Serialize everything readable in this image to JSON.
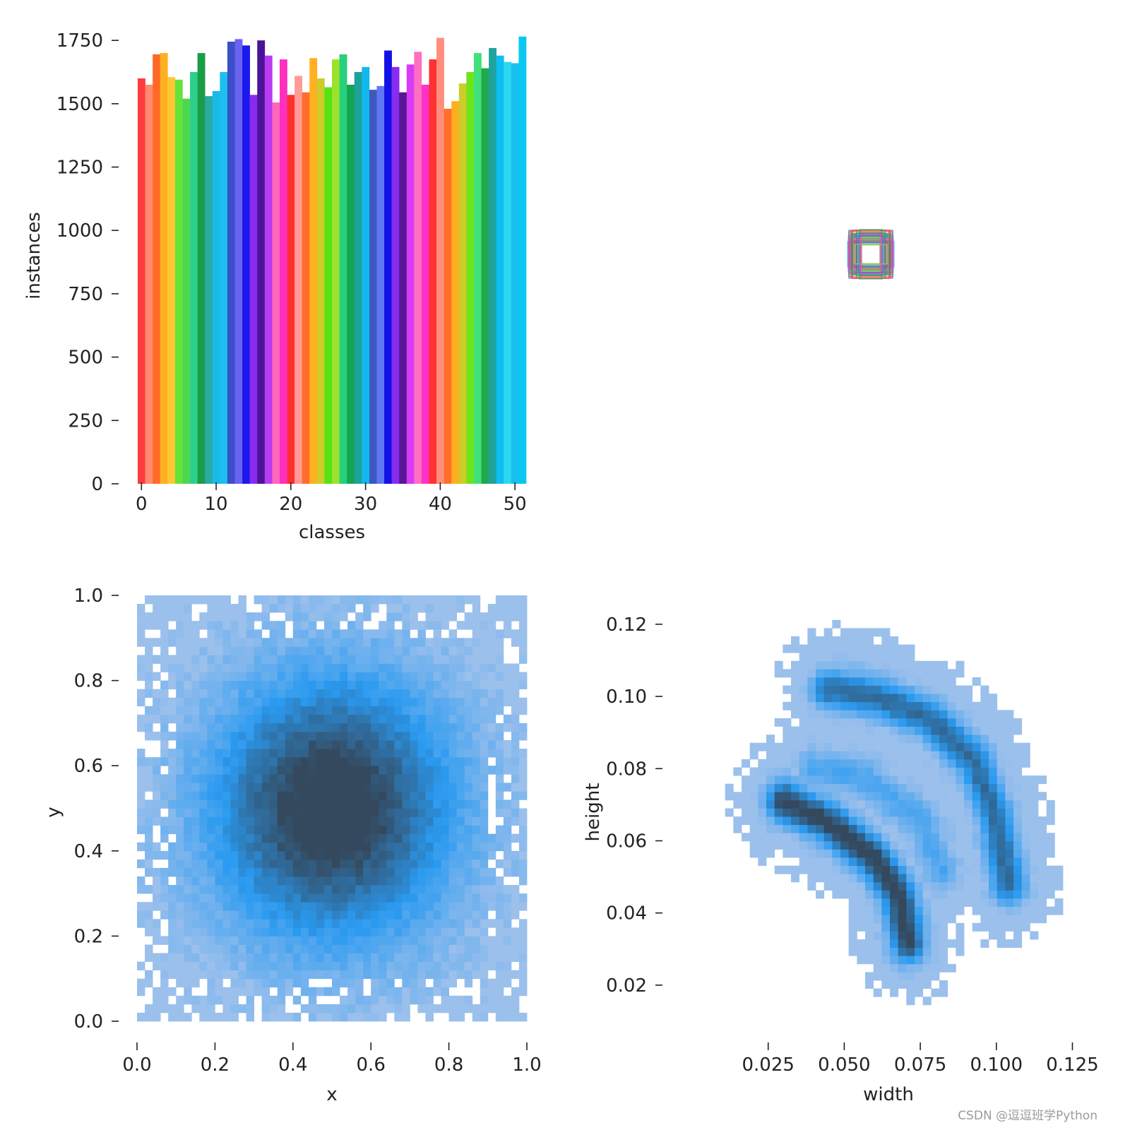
{
  "watermark": "CSDN @逗逗班学Python",
  "colors": {
    "hist_light": "#a8c4ec",
    "hist_mid": "#2a9af0",
    "hist_dark": "#34495e",
    "text": "#222222"
  },
  "chart_data": [
    {
      "type": "bar",
      "position": "top-left",
      "xlabel": "classes",
      "ylabel": "instances",
      "xticks": [
        0,
        10,
        20,
        30,
        40,
        50
      ],
      "yticks": [
        0,
        250,
        500,
        750,
        1000,
        1250,
        1500,
        1750
      ],
      "xlim": [
        -0.5,
        51.5
      ],
      "ylim": [
        0,
        1770
      ],
      "categories": [
        0,
        1,
        2,
        3,
        4,
        5,
        6,
        7,
        8,
        9,
        10,
        11,
        12,
        13,
        14,
        15,
        16,
        17,
        18,
        19,
        20,
        21,
        22,
        23,
        24,
        25,
        26,
        27,
        28,
        29,
        30,
        31,
        32,
        33,
        34,
        35,
        36,
        37,
        38,
        39,
        40,
        41,
        42,
        43,
        44,
        45,
        46,
        47,
        48,
        49,
        50,
        51
      ],
      "values": [
        1600,
        1575,
        1695,
        1700,
        1605,
        1595,
        1520,
        1625,
        1700,
        1530,
        1550,
        1625,
        1745,
        1755,
        1730,
        1535,
        1750,
        1690,
        1505,
        1675,
        1535,
        1610,
        1545,
        1680,
        1600,
        1565,
        1675,
        1695,
        1575,
        1625,
        1645,
        1555,
        1570,
        1710,
        1645,
        1545,
        1655,
        1705,
        1575,
        1675,
        1760,
        1480,
        1510,
        1580,
        1625,
        1700,
        1640,
        1720,
        1690,
        1665,
        1660,
        1765
      ],
      "colors": [
        "#ff3b3b",
        "#ff8a70",
        "#ff6a26",
        "#ffb020",
        "#ffc734",
        "#66e33a",
        "#4fd64f",
        "#2dcf8c",
        "#1a9d47",
        "#29aaa2",
        "#1bb9e8",
        "#1bbff0",
        "#3a4fc8",
        "#6b62f0",
        "#1a1aee",
        "#8b2aef",
        "#4a1496",
        "#b93bf2",
        "#ff66bb",
        "#ff2fbf",
        "#ff2f2f",
        "#ff9b95",
        "#ff6e2b",
        "#ffb020",
        "#cdcd2a",
        "#55e315",
        "#9de22a",
        "#27d07a",
        "#14a552",
        "#1ca39b",
        "#12b9f0",
        "#3e58c0",
        "#5f78f2",
        "#1212e6",
        "#8a2bf0",
        "#5a1696",
        "#d73bf5",
        "#ff70c2",
        "#ff31c6",
        "#ff3131",
        "#ff8f7c",
        "#ff6f2a",
        "#ffae1e",
        "#cccc2c",
        "#6ee41a",
        "#40e07a",
        "#22a94c",
        "#1fa39e",
        "#0ebef3",
        "#2ed8f2",
        "#19bfee",
        "#08c8f2"
      ]
    },
    {
      "type": "image",
      "position": "top-right",
      "description_visible": "overlay of bounding boxes centered, multicolored rectangles"
    },
    {
      "type": "heatmap",
      "position": "bottom-left",
      "xlabel": "x",
      "ylabel": "y",
      "xticks": [
        0.0,
        0.2,
        0.4,
        0.6,
        0.8,
        1.0
      ],
      "yticks": [
        0.0,
        0.2,
        0.4,
        0.6,
        0.8,
        1.0
      ],
      "xlim": [
        0,
        1
      ],
      "ylim": [
        0,
        1
      ],
      "distribution": {
        "center": [
          0.5,
          0.5
        ],
        "spread": 0.22,
        "bins": 50
      }
    },
    {
      "type": "heatmap",
      "position": "bottom-right",
      "xlabel": "width",
      "ylabel": "height",
      "xticks": [
        0.025,
        0.05,
        0.075,
        0.1,
        0.125
      ],
      "yticks": [
        0.02,
        0.04,
        0.06,
        0.08,
        0.1,
        0.12
      ],
      "xlim": [
        0.0,
        0.13
      ],
      "ylim": [
        0.01,
        0.128
      ],
      "clusters": [
        {
          "points": [
            [
              0.03,
              0.071
            ],
            [
              0.045,
              0.065
            ],
            [
              0.06,
              0.055
            ],
            [
              0.068,
              0.045
            ],
            [
              0.071,
              0.032
            ]
          ],
          "strength": 1.0
        },
        {
          "points": [
            [
              0.045,
              0.102
            ],
            [
              0.06,
              0.1
            ],
            [
              0.078,
              0.094
            ],
            [
              0.093,
              0.082
            ],
            [
              0.1,
              0.066
            ],
            [
              0.104,
              0.048
            ]
          ],
          "strength": 0.75
        },
        {
          "points": [
            [
              0.04,
              0.08
            ],
            [
              0.055,
              0.078
            ],
            [
              0.075,
              0.066
            ],
            [
              0.082,
              0.052
            ]
          ],
          "strength": 0.35
        }
      ]
    }
  ]
}
